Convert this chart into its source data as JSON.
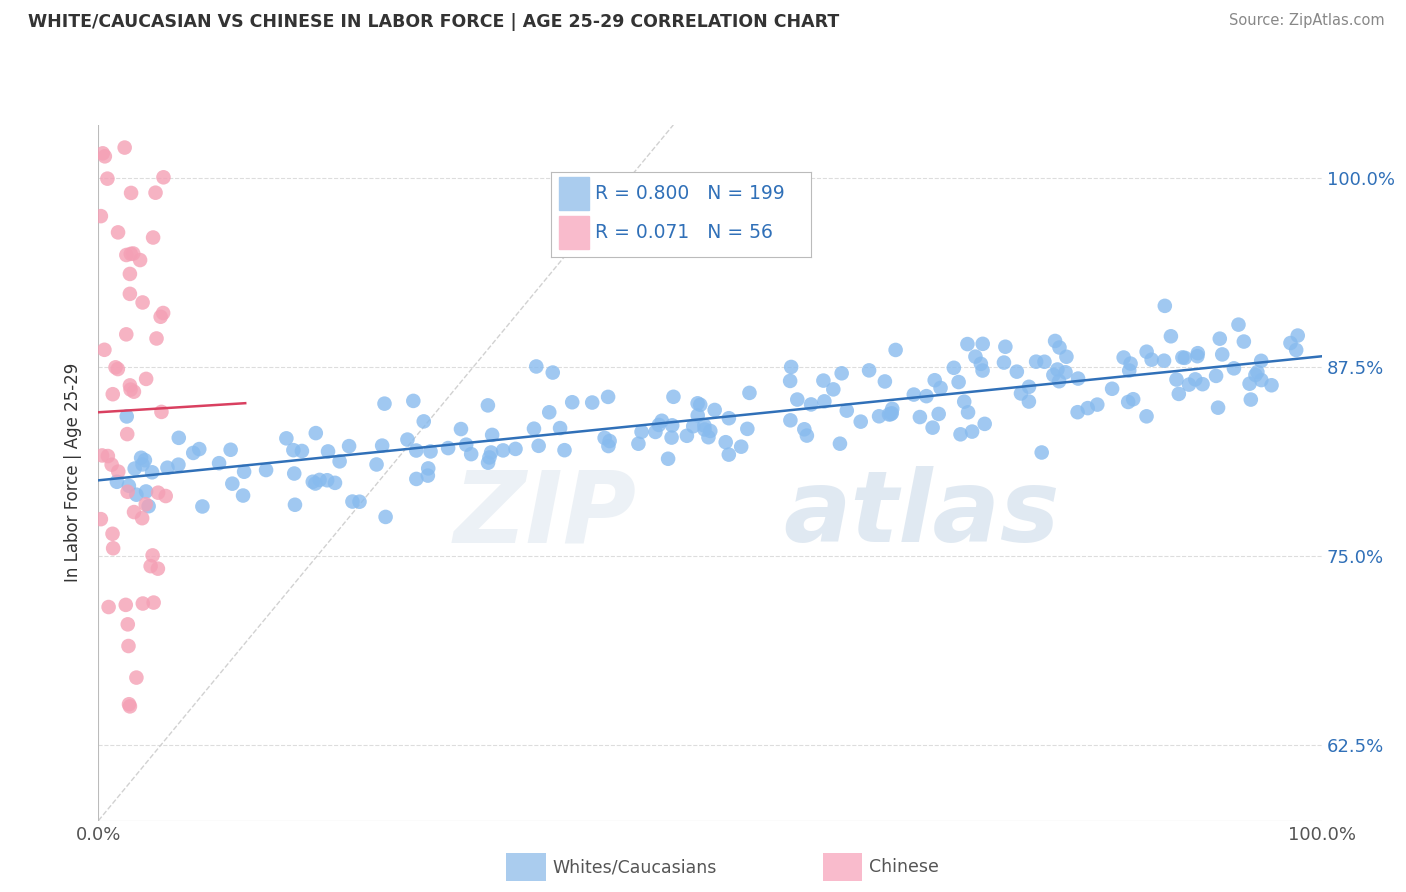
{
  "title": "WHITE/CAUCASIAN VS CHINESE IN LABOR FORCE | AGE 25-29 CORRELATION CHART",
  "source": "Source: ZipAtlas.com",
  "ylabel": "In Labor Force | Age 25-29",
  "xlim": [
    0.0,
    1.0
  ],
  "ylim": [
    0.575,
    1.035
  ],
  "ytick_labels": [
    "62.5%",
    "75.0%",
    "87.5%",
    "100.0%"
  ],
  "ytick_values": [
    0.625,
    0.75,
    0.875,
    1.0
  ],
  "blue_color": "#88BBEE",
  "pink_color": "#F4A0B5",
  "blue_line_color": "#3070B8",
  "pink_line_color": "#D94060",
  "diag_line_color": "#CCCCCC",
  "legend_blue_fill": "#AACCEE",
  "legend_pink_fill": "#F9BBCC",
  "R_blue": 0.8,
  "N_blue": 199,
  "R_pink": 0.071,
  "N_pink": 56,
  "blue_intercept": 0.8,
  "blue_slope": 0.082,
  "pink_intercept": 0.845,
  "pink_slope": 0.05,
  "background_color": "#FFFFFF",
  "grid_color": "#DDDDDD"
}
